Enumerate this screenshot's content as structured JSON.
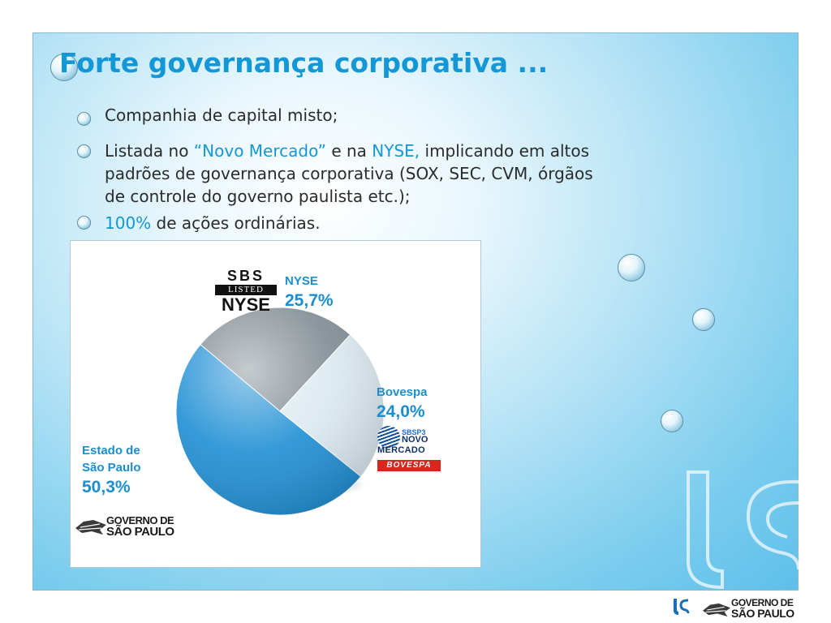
{
  "title": "Forte governança corporativa ...",
  "bullets": [
    {
      "segments": [
        "Companhia de capital misto;"
      ]
    },
    {
      "segments": [
        "Listada no ",
        "“Novo Mercado”",
        " e na ",
        "NYSE,",
        " implicando em altos"
      ]
    },
    {
      "segments": [
        "padrões de governança corporativa (SOX, SEC, CVM, órgãos"
      ]
    },
    {
      "segments": [
        "de controle do governo paulista etc.);"
      ]
    },
    {
      "segments": [
        "100%",
        " de ações ordinárias."
      ]
    }
  ],
  "colors": {
    "accent": "#1497d6",
    "label": "#1b8ecf",
    "bovespa_red": "#d9251c"
  },
  "logos": {
    "sbs_top": "SBS",
    "sbs_listed": "LISTED",
    "sbs_nyse": "NYSE",
    "novo_mercado_code": "SBSP3",
    "novo_mercado_novo": "NOVO",
    "novo_mercado_mercado": "MERCADO",
    "bovespa": "BOVESPA",
    "gov_line1": "GOVERNO DE",
    "gov_line2": "SÃO PAULO"
  },
  "chart_data": {
    "type": "pie",
    "slices": [
      {
        "label": "NYSE",
        "value": 25.7,
        "value_label": "25,7%",
        "color": "#7f8a91"
      },
      {
        "label": "Bovespa",
        "value": 24.0,
        "value_label": "24,0%",
        "color": "#dbe9f0"
      },
      {
        "label": "Estado de São Paulo",
        "label_lines": [
          "Estado de",
          "São Paulo"
        ],
        "value": 50.3,
        "value_label": "50,3%",
        "color": "#1f8fd4"
      }
    ]
  }
}
